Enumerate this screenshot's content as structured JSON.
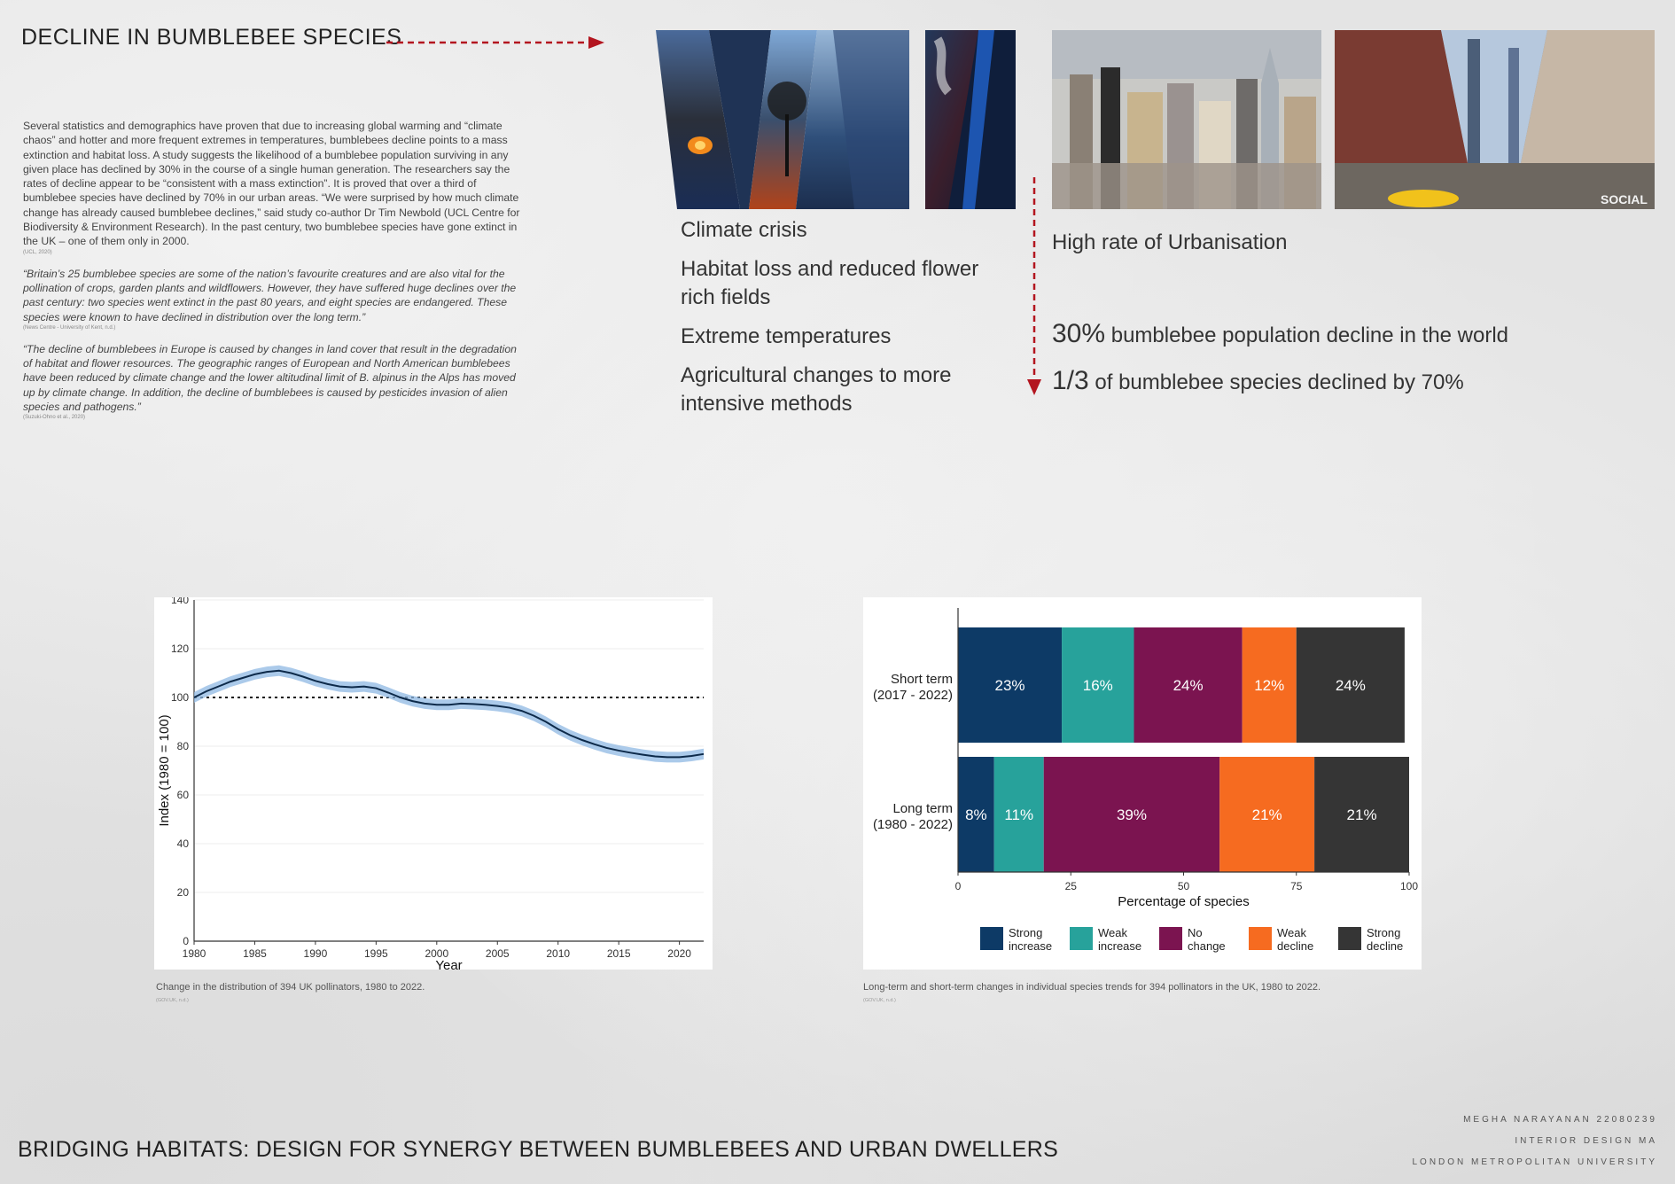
{
  "title": "DECLINE IN BUMBLEBEE SPECIES",
  "intro": {
    "paragraph": "Several statistics and demographics have proven that due to increasing global warming and “climate chaos” and hotter and more frequent extremes in temperatures, bumblebees decline points to a mass extinction and habitat loss. A study suggests the likelihood of a bumblebee population surviving in any given place has declined by 30% in the course of a single human generation. The researchers say the rates of decline appear to be “consistent with a mass extinction”. It is proved that over a third of bumblebee species have declined by 70% in our urban areas. “We were surprised by how much climate change has already caused bumblebee declines,” said study co-author Dr Tim Newbold (UCL Centre for Biodiversity & Environment Research). In the past century, two bumblebee species have gone extinct in the UK – one of them only in 2000.",
    "paragraph_cite": "(UCL, 2020)",
    "quote1": "“Britain’s 25 bumblebee species are some of the nation’s favourite creatures and are also vital for the pollination of crops, garden plants and wildflowers. However, they have suffered huge declines over the past century: two species went extinct in the past 80 years, and eight species are endangered. These species were known to have declined in distribution over the long term.”",
    "quote1_cite": "(News Centre - University of Kent, n.d.)",
    "quote2": "“The decline of bumblebees in Europe is caused by changes in land cover that result in the degradation of habitat and flower resources. The geographic ranges of European and North American bumblebees have been reduced by climate change and the lower altitudinal limit of B. alpinus in the Alps has moved up by climate change. In addition, the decline of bumblebees is caused by pesticides invasion of alien species and pathogens.”",
    "quote2_cite": "(Suzuki-Ohno et al., 2020)"
  },
  "causes": [
    "Climate crisis",
    "Habitat loss and reduced flower rich fields",
    "Extreme temperatures",
    "Agricultural changes to more intensive methods"
  ],
  "urbanisation": "High rate of Urbanisation",
  "stats": [
    {
      "big": "30%",
      "text": " bumblebee population decline in the world"
    },
    {
      "big": "1/3",
      "text": " of bumblebee species declined by 70%"
    }
  ],
  "line_caption": "Change in the distribution of 394 UK pollinators, 1980 to 2022.",
  "line_caption_cite": "(GOV.UK, n.d.)",
  "bar_caption": "Long-term and short-term changes in individual species trends for 394 pollinators in the UK, 1980 to 2022.",
  "bar_caption_cite": "(GOV.UK, n.d.)",
  "footer": "BRIDGING HABITATS: DESIGN FOR SYNERGY BETWEEN BUMBLEBEES AND URBAN DWELLERS",
  "credits": [
    "MEGHA NARAYANAN 22080239",
    "INTERIOR DESIGN MA",
    "LONDON METROPOLITAN UNIVERSITY"
  ],
  "photo_watermark": "SOCIAL",
  "colors": {
    "arrow": "#b3151f",
    "line": "#0d2a4a",
    "band": "#8fb8e3"
  },
  "chart_data": [
    {
      "type": "line",
      "xlabel": "Year",
      "ylabel": "Index (1980 = 100)",
      "xlim": [
        1980,
        2022
      ],
      "ylim": [
        0,
        140
      ],
      "xticks": [
        1980,
        1985,
        1990,
        1995,
        2000,
        2005,
        2010,
        2015,
        2020
      ],
      "yticks": [
        0,
        20,
        40,
        60,
        80,
        100,
        120,
        140
      ],
      "reference_line": 100,
      "x": [
        1980,
        1981,
        1982,
        1983,
        1984,
        1985,
        1986,
        1987,
        1988,
        1989,
        1990,
        1991,
        1992,
        1993,
        1994,
        1995,
        1996,
        1997,
        1998,
        1999,
        2000,
        2001,
        2002,
        2003,
        2004,
        2005,
        2006,
        2007,
        2008,
        2009,
        2010,
        2011,
        2012,
        2013,
        2014,
        2015,
        2016,
        2017,
        2018,
        2019,
        2020,
        2021,
        2022
      ],
      "y": [
        100,
        102.5,
        104.5,
        106.5,
        108,
        109.5,
        110.5,
        111,
        110,
        108.5,
        106.8,
        105.5,
        104.5,
        104.2,
        104.5,
        103.8,
        102,
        100,
        98.5,
        97.5,
        97,
        97,
        97.5,
        97.3,
        97,
        96.5,
        95.8,
        94.5,
        92.5,
        90,
        87,
        84.5,
        82.5,
        80.8,
        79.3,
        78.2,
        77.3,
        76.5,
        75.8,
        75.5,
        75.5,
        76,
        76.8
      ]
    },
    {
      "type": "bar",
      "orientation": "horizontal-stacked",
      "xlabel": "Percentage of species",
      "xlim": [
        0,
        100
      ],
      "xticks": [
        0,
        25,
        50,
        75,
        100
      ],
      "categories": [
        [
          "Short term",
          "(2017 - 2022)"
        ],
        [
          "Long term",
          "(1980 - 2022)"
        ]
      ],
      "series": [
        {
          "name": [
            "Strong",
            "increase"
          ],
          "color": "#0d3a66",
          "values": [
            23,
            8
          ]
        },
        {
          "name": [
            "Weak",
            "increase"
          ],
          "color": "#27a29b",
          "values": [
            16,
            11
          ]
        },
        {
          "name": [
            "No",
            "change"
          ],
          "color": "#7b1450",
          "values": [
            24,
            39
          ]
        },
        {
          "name": [
            "Weak",
            "decline"
          ],
          "color": "#f66b20",
          "values": [
            12,
            21
          ]
        },
        {
          "name": [
            "Strong",
            "decline"
          ],
          "color": "#353535",
          "values": [
            24,
            21
          ]
        }
      ]
    }
  ]
}
